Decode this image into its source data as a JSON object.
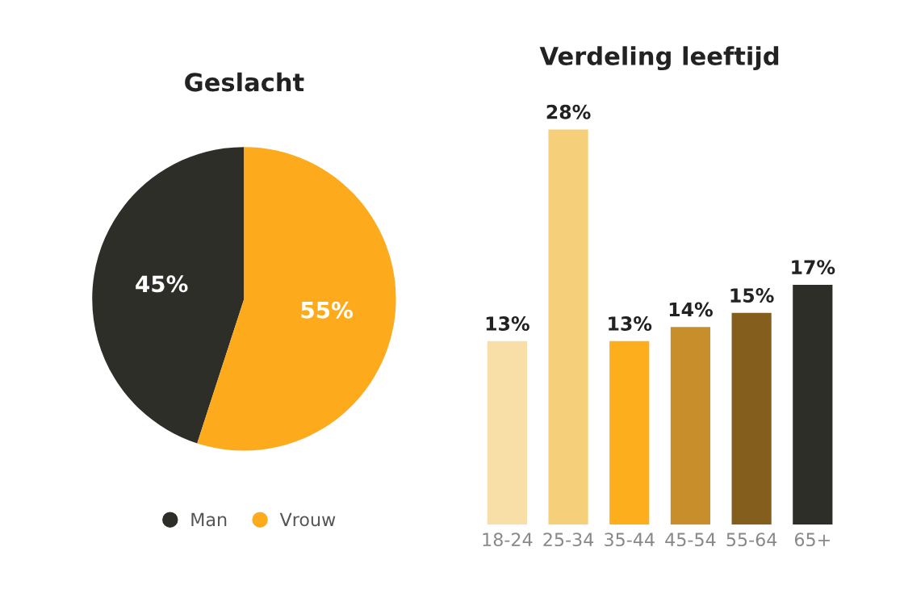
{
  "chart_data": [
    {
      "type": "pie",
      "title": "Geslacht",
      "categories": [
        "Man",
        "Vrouw"
      ],
      "values": [
        45,
        55
      ],
      "colors": [
        "#2e2e29",
        "#fdab1c"
      ],
      "value_labels": [
        "45%",
        "55%"
      ],
      "legend": "bottom"
    },
    {
      "type": "bar",
      "title": "Verdeling leeftijd",
      "categories": [
        "18-24",
        "25-34",
        "35-44",
        "45-54",
        "55-64",
        "65+"
      ],
      "values": [
        13,
        28,
        13,
        14,
        15,
        17
      ],
      "colors": [
        "#f8dfa8",
        "#f6cf7a",
        "#fcae1c",
        "#c98e2c",
        "#835e1d",
        "#2e2e29"
      ],
      "value_labels": [
        "13%",
        "28%",
        "13%",
        "14%",
        "15%",
        "17%"
      ]
    }
  ]
}
